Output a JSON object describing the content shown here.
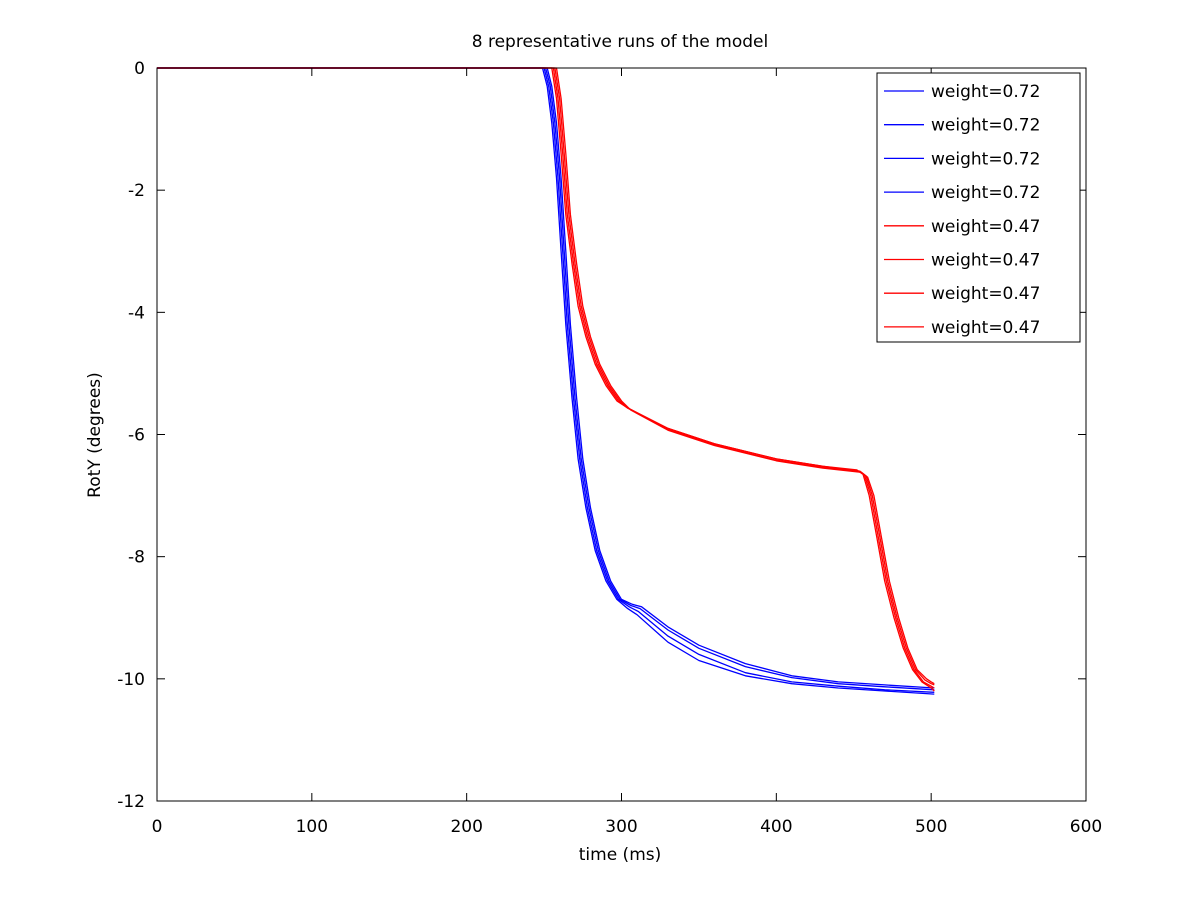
{
  "chart_data": {
    "type": "line",
    "title": "8 representative runs of the model",
    "xlabel": "time (ms)",
    "ylabel": "RotY (degrees)",
    "xlim": [
      0,
      600
    ],
    "ylim": [
      -12,
      0
    ],
    "xticks": [
      0,
      100,
      200,
      300,
      400,
      500,
      600
    ],
    "yticks": [
      0,
      -2,
      -4,
      -6,
      -8,
      -10,
      -12
    ],
    "xtick_labels": [
      "0",
      "100",
      "200",
      "300",
      "400",
      "500",
      "600"
    ],
    "ytick_labels": [
      "0",
      "-2",
      "-4",
      "-6",
      "-8",
      "-10",
      "-12"
    ],
    "grid": false,
    "legend_position": "top-right",
    "colors": {
      "blue": "#0000ff",
      "red": "#ff0000",
      "frame": "#000000"
    },
    "series": [
      {
        "name": "weight=0.72",
        "color": "#0000ff",
        "x": [
          0,
          249,
          252,
          255,
          258,
          261,
          264,
          268,
          272,
          277,
          283,
          290,
          297,
          304,
          310,
          330,
          350,
          380,
          410,
          440,
          470,
          502
        ],
        "y": [
          0,
          0,
          -0.3,
          -0.9,
          -1.8,
          -3.0,
          -4.2,
          -5.4,
          -6.4,
          -7.2,
          -7.9,
          -8.4,
          -8.7,
          -8.85,
          -8.95,
          -9.4,
          -9.7,
          -9.95,
          -10.08,
          -10.15,
          -10.2,
          -10.25
        ]
      },
      {
        "name": "weight=0.72",
        "color": "#0000ff",
        "x": [
          0,
          250,
          253,
          256,
          259,
          262,
          265,
          269,
          273,
          278,
          284,
          291,
          298,
          305,
          311,
          330,
          350,
          380,
          410,
          440,
          470,
          502
        ],
        "y": [
          0,
          0,
          -0.3,
          -0.9,
          -1.8,
          -3.0,
          -4.2,
          -5.4,
          -6.4,
          -7.2,
          -7.9,
          -8.4,
          -8.7,
          -8.82,
          -8.9,
          -9.3,
          -9.6,
          -9.9,
          -10.05,
          -10.12,
          -10.18,
          -10.22
        ]
      },
      {
        "name": "weight=0.72",
        "color": "#0000ff",
        "x": [
          0,
          251,
          254,
          257,
          260,
          263,
          266,
          270,
          274,
          279,
          285,
          292,
          299,
          306,
          312,
          330,
          350,
          380,
          410,
          440,
          470,
          502
        ],
        "y": [
          0,
          0,
          -0.3,
          -0.9,
          -1.8,
          -3.0,
          -4.2,
          -5.4,
          -6.4,
          -7.2,
          -7.9,
          -8.4,
          -8.7,
          -8.8,
          -8.85,
          -9.2,
          -9.5,
          -9.8,
          -9.98,
          -10.08,
          -10.13,
          -10.18
        ]
      },
      {
        "name": "weight=0.72",
        "color": "#0000ff",
        "x": [
          0,
          252,
          255,
          258,
          261,
          264,
          267,
          271,
          275,
          280,
          286,
          293,
          300,
          307,
          313,
          330,
          350,
          380,
          410,
          440,
          470,
          502
        ],
        "y": [
          0,
          0,
          -0.3,
          -0.9,
          -1.8,
          -3.0,
          -4.2,
          -5.4,
          -6.4,
          -7.2,
          -7.9,
          -8.4,
          -8.7,
          -8.78,
          -8.82,
          -9.15,
          -9.45,
          -9.75,
          -9.95,
          -10.05,
          -10.1,
          -10.15
        ]
      },
      {
        "name": "weight=0.47",
        "color": "#ff0000",
        "x": [
          0,
          255,
          258,
          261,
          264,
          268,
          272,
          277,
          283,
          290,
          297,
          303,
          330,
          360,
          400,
          430,
          452,
          456,
          460,
          465,
          470,
          476,
          482,
          488,
          494,
          500,
          502
        ],
        "y": [
          0,
          0,
          -0.5,
          -1.4,
          -2.4,
          -3.2,
          -3.9,
          -4.4,
          -4.85,
          -5.2,
          -5.45,
          -5.55,
          -5.9,
          -6.15,
          -6.4,
          -6.52,
          -6.58,
          -6.65,
          -7.0,
          -7.7,
          -8.4,
          -9.0,
          -9.5,
          -9.85,
          -10.05,
          -10.15,
          -10.2
        ]
      },
      {
        "name": "weight=0.47",
        "color": "#ff0000",
        "x": [
          0,
          256,
          259,
          262,
          265,
          269,
          273,
          278,
          284,
          291,
          298,
          304,
          330,
          360,
          400,
          430,
          453,
          457,
          461,
          466,
          471,
          477,
          483,
          489,
          495,
          500,
          502
        ],
        "y": [
          0,
          0,
          -0.5,
          -1.4,
          -2.4,
          -3.2,
          -3.9,
          -4.4,
          -4.85,
          -5.2,
          -5.45,
          -5.57,
          -5.9,
          -6.15,
          -6.4,
          -6.52,
          -6.6,
          -6.67,
          -7.0,
          -7.7,
          -8.4,
          -9.0,
          -9.5,
          -9.85,
          -10.05,
          -10.12,
          -10.15
        ]
      },
      {
        "name": "weight=0.47",
        "color": "#ff0000",
        "x": [
          0,
          257,
          260,
          263,
          266,
          270,
          274,
          279,
          285,
          292,
          299,
          305,
          330,
          360,
          400,
          430,
          454,
          458,
          462,
          467,
          472,
          478,
          484,
          490,
          496,
          500,
          502
        ],
        "y": [
          0,
          0,
          -0.5,
          -1.4,
          -2.4,
          -3.2,
          -3.9,
          -4.4,
          -4.85,
          -5.2,
          -5.45,
          -5.58,
          -5.92,
          -6.17,
          -6.42,
          -6.54,
          -6.6,
          -6.68,
          -7.0,
          -7.7,
          -8.4,
          -9.0,
          -9.5,
          -9.85,
          -10.02,
          -10.08,
          -10.1
        ]
      },
      {
        "name": "weight=0.47",
        "color": "#ff0000",
        "x": [
          0,
          258,
          261,
          264,
          267,
          271,
          275,
          280,
          286,
          293,
          300,
          306,
          330,
          360,
          400,
          430,
          455,
          459,
          463,
          468,
          473,
          479,
          485,
          491,
          497,
          500,
          502
        ],
        "y": [
          0,
          0,
          -0.5,
          -1.4,
          -2.4,
          -3.2,
          -3.9,
          -4.4,
          -4.85,
          -5.2,
          -5.45,
          -5.6,
          -5.93,
          -6.18,
          -6.43,
          -6.55,
          -6.62,
          -6.7,
          -7.0,
          -7.7,
          -8.4,
          -9.0,
          -9.5,
          -9.85,
          -10.0,
          -10.05,
          -10.08
        ]
      }
    ]
  }
}
